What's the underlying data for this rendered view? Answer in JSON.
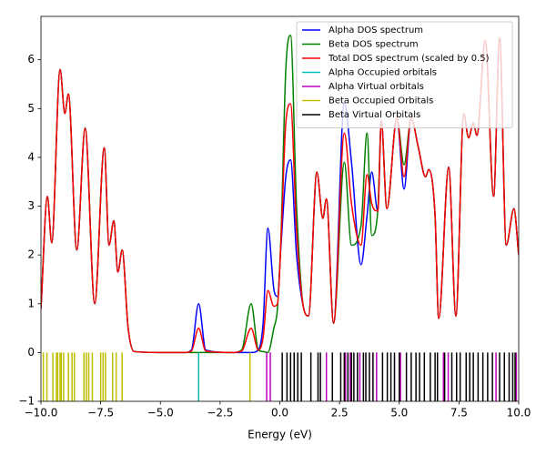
{
  "chart_data": {
    "type": "line",
    "xlabel": "Energy (eV)",
    "xlim": [
      -10,
      10
    ],
    "ylim": [
      -1,
      6.89
    ],
    "xticks": [
      {
        "value": -10,
        "label": "−10.0"
      },
      {
        "value": -7.5,
        "label": "−7.5"
      },
      {
        "value": -5,
        "label": "−5.0"
      },
      {
        "value": -2.5,
        "label": "−2.5"
      },
      {
        "value": 0,
        "label": "0.0"
      },
      {
        "value": 2.5,
        "label": "2.5"
      },
      {
        "value": 5,
        "label": "5.0"
      },
      {
        "value": 7.5,
        "label": "7.5"
      },
      {
        "value": 10,
        "label": "10.0"
      }
    ],
    "yticks": [
      {
        "value": -1,
        "label": "−1"
      },
      0,
      1,
      2,
      3,
      4,
      5,
      6
    ],
    "grid": false,
    "legend": "upper right",
    "x": [
      -10,
      -9.73,
      -9.55,
      -9.2,
      -9.0,
      -8.85,
      -8.5,
      -8.15,
      -7.75,
      -7.35,
      -7.15,
      -6.95,
      -6.78,
      -6.6,
      -6.35,
      -6.1,
      -5,
      -4,
      -3.7,
      -3.4,
      -3.1,
      -2,
      -1.6,
      -1.2,
      -0.9,
      -0.7,
      -0.5,
      -0.25,
      -0.1,
      0.05,
      0.25,
      0.45,
      0.7,
      1.0,
      1.2,
      1.55,
      1.8,
      1.95,
      2.25,
      2.7,
      3.0,
      3.4,
      3.65,
      3.85,
      4.1,
      4.25,
      4.48,
      4.9,
      5.2,
      5.5,
      5.8,
      6.1,
      6.23,
      6.5,
      6.65,
      7.07,
      7.37,
      7.7,
      7.9,
      8.1,
      8.25,
      8.6,
      8.95,
      9.2,
      9.48,
      9.8,
      10
    ],
    "series": [
      {
        "name": "Alpha DOS spectrum",
        "color": "#0000ff",
        "values": [
          0.9,
          3.2,
          2.25,
          5.8,
          4.9,
          5.3,
          2.1,
          4.6,
          1.0,
          4.2,
          2.2,
          2.7,
          1.65,
          2.1,
          0.5,
          0.02,
          0,
          0,
          0.05,
          1.0,
          0.05,
          0,
          0,
          0,
          0.05,
          0.6,
          2.55,
          1.3,
          1.15,
          2.2,
          3.6,
          3.95,
          2.0,
          0.9,
          0.75,
          3.7,
          2.75,
          3.15,
          0.6,
          5.1,
          3.9,
          1.8,
          2.8,
          3.7,
          2.9,
          4.75,
          2.95,
          4.8,
          3.35,
          4.8,
          4.2,
          3.6,
          3.75,
          2.8,
          0.7,
          3.8,
          0.75,
          4.9,
          4.4,
          4.7,
          4.45,
          6.4,
          3.2,
          6.45,
          2.2,
          2.95,
          2.0
        ]
      },
      {
        "name": "Beta DOS spectrum",
        "color": "#008000",
        "values": [
          0.9,
          3.2,
          2.25,
          5.8,
          4.9,
          5.3,
          2.1,
          4.6,
          1.0,
          4.2,
          2.2,
          2.7,
          1.65,
          2.1,
          0.5,
          0.02,
          0,
          0,
          0,
          0,
          0,
          0,
          0.05,
          1.0,
          0.05,
          0.02,
          0,
          0.5,
          0.9,
          2.4,
          5.8,
          6.5,
          3.0,
          0.9,
          0.75,
          3.7,
          2.75,
          3.15,
          0.6,
          3.9,
          2.2,
          2.6,
          4.5,
          2.4,
          2.9,
          4.75,
          2.95,
          4.8,
          3.85,
          4.8,
          4.2,
          3.6,
          3.75,
          2.8,
          0.7,
          3.8,
          0.75,
          4.9,
          4.4,
          4.7,
          4.45,
          6.4,
          3.2,
          6.45,
          2.2,
          2.95,
          2.0
        ]
      },
      {
        "name": "Total DOS spectrum (scaled by 0.5)",
        "color": "#ff0000",
        "values": [
          0.9,
          3.2,
          2.25,
          5.8,
          4.9,
          5.3,
          2.1,
          4.6,
          1.0,
          4.2,
          2.2,
          2.7,
          1.65,
          2.1,
          0.5,
          0.02,
          0,
          0,
          0.03,
          0.5,
          0.03,
          0,
          0.03,
          0.5,
          0.05,
          0.3,
          1.27,
          0.95,
          1.0,
          2.3,
          4.7,
          5.1,
          2.5,
          0.9,
          0.75,
          3.7,
          2.75,
          3.15,
          0.6,
          4.5,
          3.05,
          2.2,
          3.65,
          3.05,
          2.9,
          4.75,
          2.95,
          4.8,
          3.6,
          4.8,
          4.2,
          3.6,
          3.75,
          2.8,
          0.7,
          3.8,
          0.75,
          4.9,
          4.4,
          4.7,
          4.45,
          6.4,
          3.2,
          6.45,
          2.2,
          2.95,
          2.0
        ]
      }
    ],
    "sticks": [
      {
        "name": "Alpha Occupied orbitals",
        "color": "#00bfbf",
        "x": [
          -3.4
        ]
      },
      {
        "name": "Alpha Virtual orbitals",
        "color": "#bf00bf",
        "x": [
          -0.55,
          -0.4,
          1.95,
          2.75,
          2.95,
          3.35,
          4.05,
          5.05,
          6.85,
          7.05,
          9.05,
          9.9
        ]
      },
      {
        "name": "Beta Occupied Orbitals",
        "color": "#bfbf00",
        "x": [
          -9.9,
          -9.75,
          -9.5,
          -9.35,
          -9.3,
          -9.2,
          -9.15,
          -9.05,
          -8.85,
          -8.7,
          -8.6,
          -8.2,
          -8.1,
          -8.0,
          -7.85,
          -7.5,
          -7.4,
          -7.3,
          -7.0,
          -6.85,
          -6.6,
          -1.25
        ]
      },
      {
        "name": "Beta Virtual Orbitals",
        "color": "#000000",
        "x": [
          0.1,
          0.3,
          0.45,
          0.6,
          0.75,
          0.9,
          1.3,
          1.6,
          1.7,
          2.2,
          2.55,
          2.7,
          2.85,
          3.0,
          3.1,
          3.25,
          3.5,
          3.6,
          3.75,
          3.9,
          4.3,
          4.5,
          4.65,
          4.8,
          5.0,
          5.3,
          5.5,
          5.7,
          5.85,
          6.05,
          6.3,
          6.5,
          6.6,
          6.9,
          7.2,
          7.4,
          7.55,
          7.8,
          7.95,
          8.1,
          8.3,
          8.5,
          8.7,
          8.9,
          9.2,
          9.4,
          9.6,
          9.75,
          9.85
        ]
      }
    ]
  }
}
